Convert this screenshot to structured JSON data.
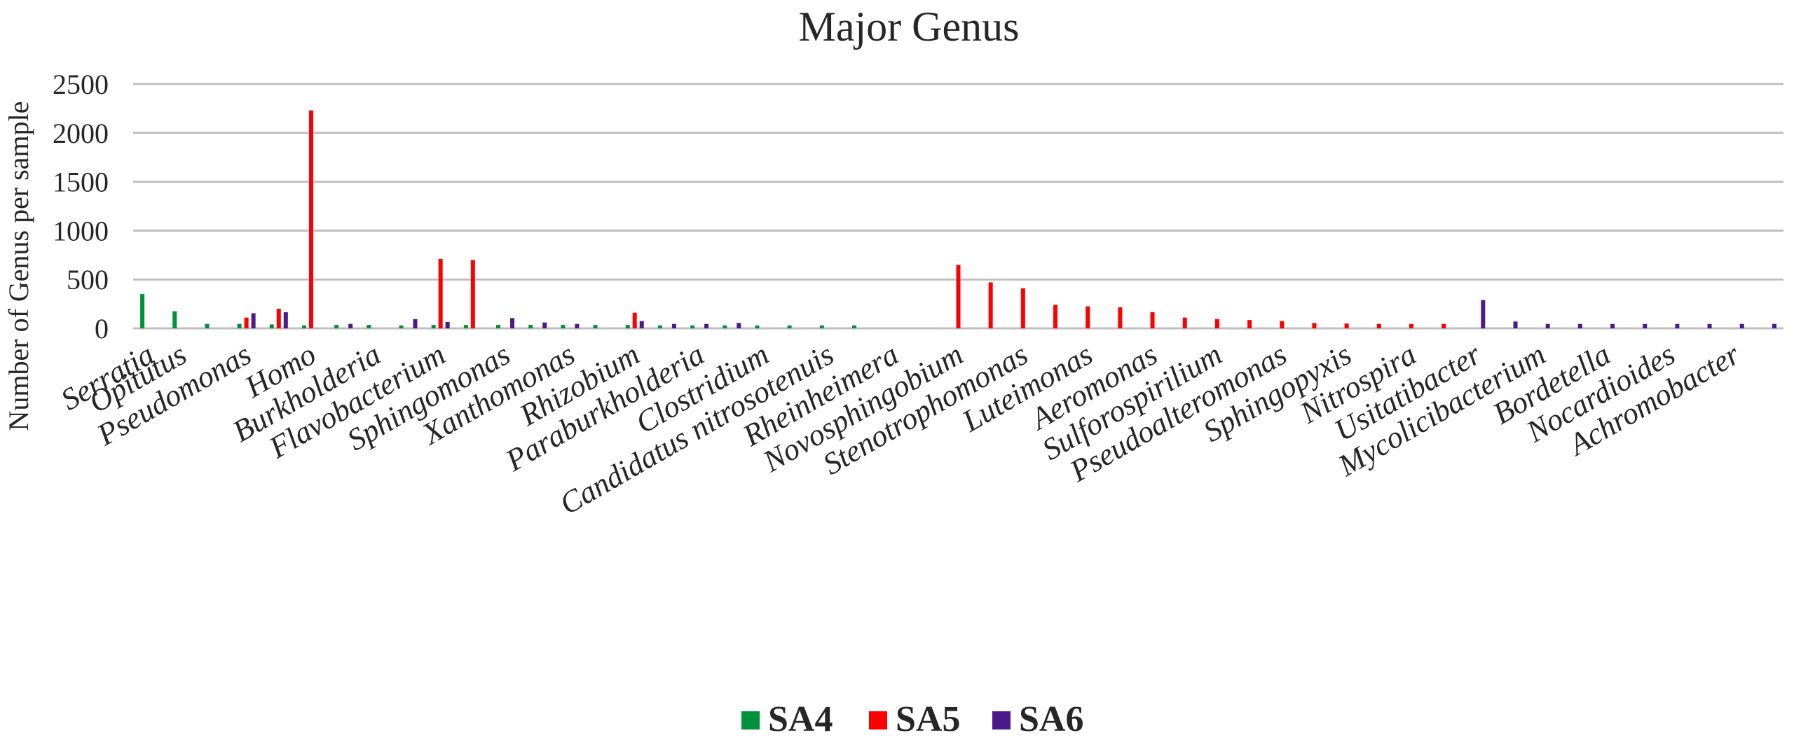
{
  "chart_data": {
    "type": "bar",
    "title": "Major Genus",
    "xlabel": "",
    "ylabel": "Number of Genus per sample",
    "ylim": [
      0,
      2500
    ],
    "yticks": [
      "0",
      "500",
      "1000",
      "1500",
      "2000",
      "2500"
    ],
    "grid": true,
    "legend_position": "bottom",
    "categories": [
      "Serratia",
      "Opitutus",
      "",
      "Pseudomonas",
      "",
      "Homo",
      "",
      "Burkholderia",
      "",
      "Flavobacterium",
      "",
      "Sphingomonas",
      "",
      "Xanthomonas",
      "",
      "Rhizobium",
      "",
      "Paraburkholderia",
      "",
      "Clostridium",
      "",
      "Candidatus nitrosotenuis",
      "",
      "Rheinheimera",
      "",
      "Novosphingobium",
      "",
      "Stenotrophomonas",
      "",
      "Luteimonas",
      "",
      "Aeromonas",
      "",
      "Sulforospirilium",
      "",
      "Pseudoalteromonas",
      "",
      "Sphingopyxis",
      "",
      "Nitrospira",
      "",
      "Usitatibacter",
      "",
      "Mycolicibacterium",
      "",
      "Bordetella",
      "",
      "Nocardioides",
      "",
      "Achromobacter",
      ""
    ],
    "series": [
      {
        "name": "SA4",
        "color": "#00913a",
        "values": [
          350,
          175,
          45,
          45,
          40,
          30,
          35,
          35,
          30,
          35,
          35,
          35,
          35,
          35,
          35,
          35,
          30,
          30,
          30,
          30,
          30,
          30,
          30,
          0,
          0,
          0,
          0,
          0,
          0,
          0,
          0,
          0,
          0,
          0,
          0,
          0,
          0,
          0,
          0,
          0,
          0,
          0,
          0,
          0,
          0,
          0,
          0,
          0,
          0,
          0,
          0
        ]
      },
      {
        "name": "SA5",
        "color": "#ff0000",
        "values": [
          0,
          0,
          0,
          110,
          200,
          2230,
          0,
          0,
          0,
          710,
          700,
          0,
          0,
          0,
          0,
          160,
          0,
          0,
          0,
          0,
          0,
          0,
          0,
          0,
          0,
          650,
          470,
          410,
          240,
          225,
          215,
          165,
          110,
          95,
          85,
          75,
          55,
          50,
          45,
          45,
          45,
          0,
          0,
          0,
          0,
          0,
          0,
          0,
          0,
          0,
          0
        ]
      },
      {
        "name": "SA6",
        "color": "#4b1a8a",
        "values": [
          0,
          0,
          0,
          155,
          165,
          0,
          45,
          0,
          95,
          65,
          0,
          105,
          60,
          45,
          0,
          75,
          45,
          45,
          55,
          0,
          0,
          0,
          0,
          0,
          0,
          0,
          0,
          0,
          0,
          0,
          0,
          0,
          0,
          0,
          0,
          0,
          0,
          0,
          0,
          0,
          0,
          290,
          70,
          45,
          45,
          45,
          45,
          45,
          45,
          45,
          45
        ]
      }
    ]
  }
}
